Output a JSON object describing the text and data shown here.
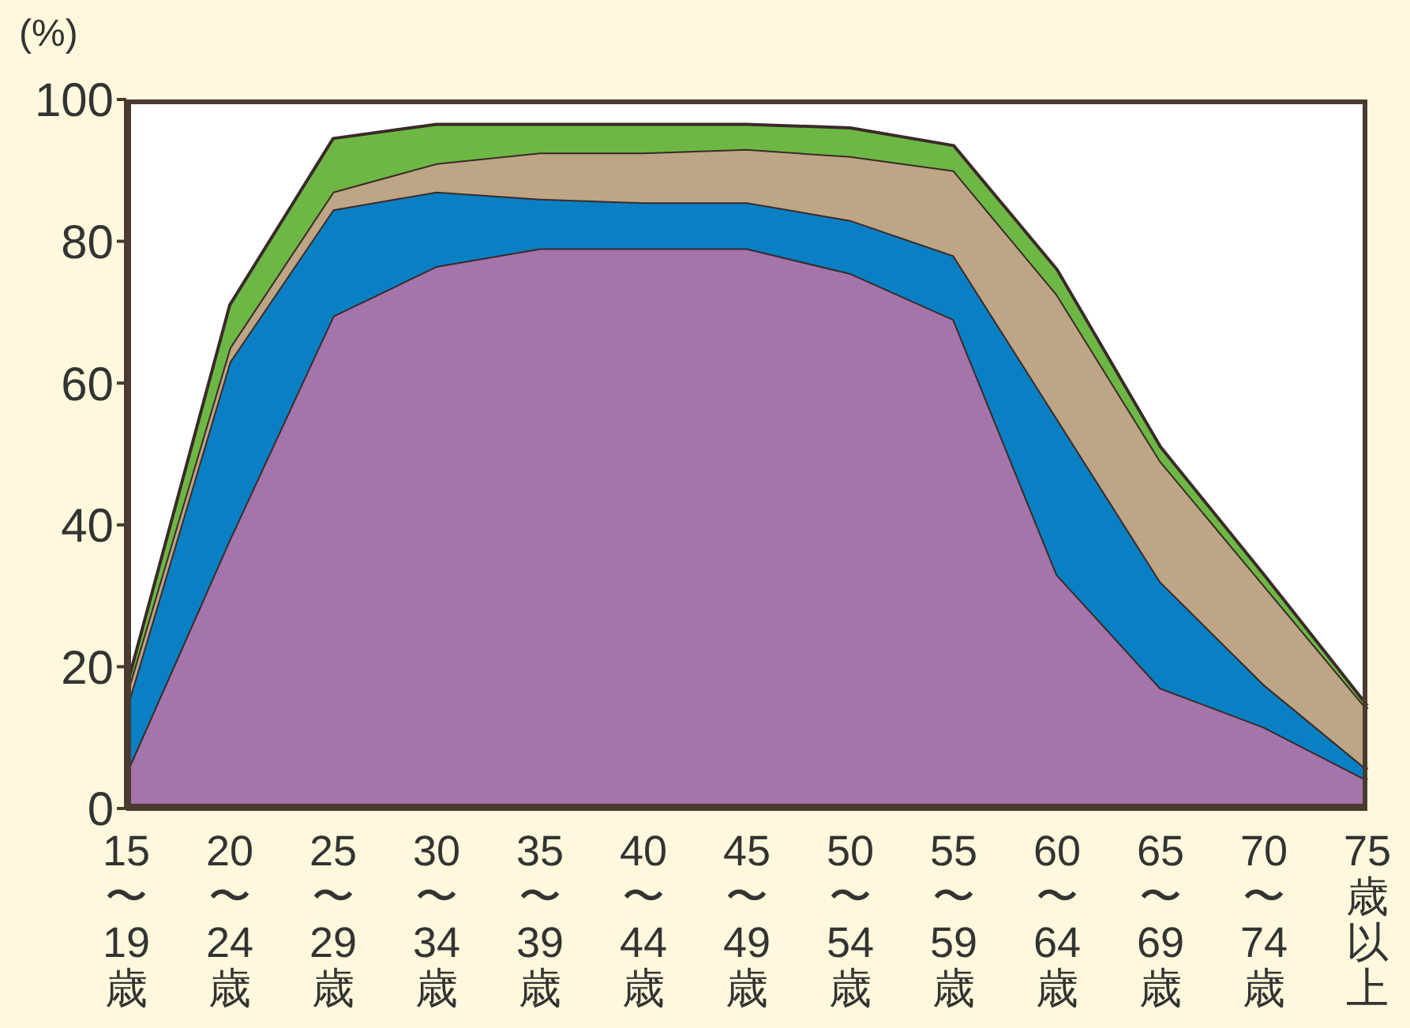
{
  "chart_data": {
    "type": "area",
    "stacked": true,
    "ylabel": "(%)",
    "categories": [
      "15〜19歳",
      "20〜24歳",
      "25〜29歳",
      "30〜34歳",
      "35〜39歳",
      "40〜44歳",
      "45〜49歳",
      "50〜54歳",
      "55〜59歳",
      "60〜64歳",
      "65〜69歳",
      "70〜74歳",
      "75歳以上"
    ],
    "series": [
      {
        "color": "#a574ab",
        "values": [
          5,
          38,
          69.5,
          76.5,
          79,
          79,
          79,
          75.5,
          69,
          33,
          17,
          11.5,
          4
        ]
      },
      {
        "color": "#0a80c4",
        "values": [
          9,
          25,
          15,
          10.5,
          7,
          6.5,
          6.5,
          7.5,
          9,
          22,
          15,
          6,
          1.5
        ]
      },
      {
        "color": "#bda586",
        "values": [
          2,
          2,
          2.5,
          4,
          6.5,
          7,
          7.5,
          9,
          12,
          17.5,
          17,
          14,
          8.5
        ]
      },
      {
        "color": "#6db845",
        "values": [
          1,
          6,
          7.5,
          5.5,
          4,
          4,
          3.5,
          4,
          3.5,
          3.5,
          2,
          1.5,
          0.5
        ]
      }
    ],
    "ylim": [
      0,
      100
    ],
    "yticks": [
      0,
      20,
      40,
      60,
      80,
      100
    ],
    "legend": false,
    "grid": false
  }
}
